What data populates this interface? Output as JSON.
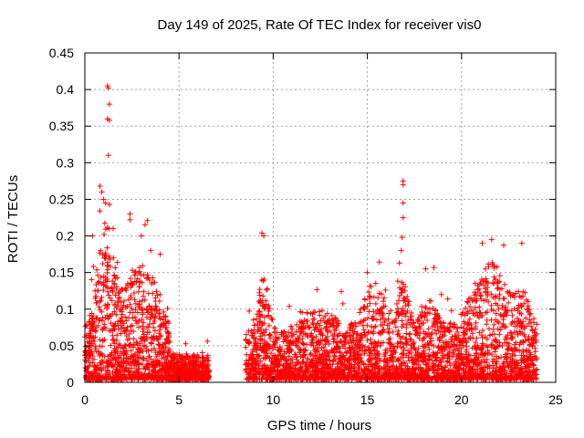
{
  "chart_data": {
    "type": "scatter",
    "title": "Day 149 of 2025, Rate Of TEC Index for receiver vis0",
    "xlabel": "GPS time / hours",
    "ylabel": "ROTI / TECUs",
    "xlim": [
      0,
      25
    ],
    "ylim": [
      0,
      0.45
    ],
    "xticks": [
      0,
      5,
      10,
      15,
      20,
      25
    ],
    "xtick_labels": [
      "0",
      "5",
      "10",
      "15",
      "20",
      "25"
    ],
    "yticks": [
      0,
      0.05,
      0.1,
      0.15,
      0.2,
      0.25,
      0.3,
      0.35,
      0.4,
      0.45
    ],
    "ytick_labels": [
      "0",
      "0.05",
      "0.1",
      "0.15",
      "0.2",
      "0.25",
      "0.3",
      "0.35",
      "0.4",
      "0.45"
    ],
    "grid": true,
    "marker": "+",
    "color": "#ff0000",
    "segments": [
      {
        "start": 0.0,
        "end": 6.6,
        "density": 1500
      },
      {
        "start": 8.5,
        "end": 24.0,
        "density": 3200
      }
    ],
    "notable_points": [
      {
        "x": 1.2,
        "y": 0.405
      },
      {
        "x": 1.25,
        "y": 0.402
      },
      {
        "x": 1.3,
        "y": 0.38
      },
      {
        "x": 1.2,
        "y": 0.36
      },
      {
        "x": 1.3,
        "y": 0.358
      },
      {
        "x": 1.25,
        "y": 0.31
      },
      {
        "x": 0.8,
        "y": 0.268
      },
      {
        "x": 0.9,
        "y": 0.26
      },
      {
        "x": 1.0,
        "y": 0.25
      },
      {
        "x": 1.1,
        "y": 0.245
      },
      {
        "x": 0.8,
        "y": 0.234
      },
      {
        "x": 2.4,
        "y": 0.23
      },
      {
        "x": 2.4,
        "y": 0.222
      },
      {
        "x": 1.5,
        "y": 0.21
      },
      {
        "x": 0.4,
        "y": 0.2
      },
      {
        "x": 16.9,
        "y": 0.275
      },
      {
        "x": 16.9,
        "y": 0.27
      },
      {
        "x": 16.9,
        "y": 0.245
      },
      {
        "x": 16.9,
        "y": 0.225
      },
      {
        "x": 16.85,
        "y": 0.198
      },
      {
        "x": 16.8,
        "y": 0.18
      },
      {
        "x": 16.7,
        "y": 0.163
      },
      {
        "x": 9.4,
        "y": 0.204
      },
      {
        "x": 9.5,
        "y": 0.2
      },
      {
        "x": 3.0,
        "y": 0.2
      },
      {
        "x": 3.5,
        "y": 0.18
      },
      {
        "x": 4.0,
        "y": 0.175
      },
      {
        "x": 21.6,
        "y": 0.195
      },
      {
        "x": 21.1,
        "y": 0.19
      },
      {
        "x": 23.2,
        "y": 0.19
      },
      {
        "x": 18.1,
        "y": 0.155
      },
      {
        "x": 15.0,
        "y": 0.15
      }
    ]
  }
}
